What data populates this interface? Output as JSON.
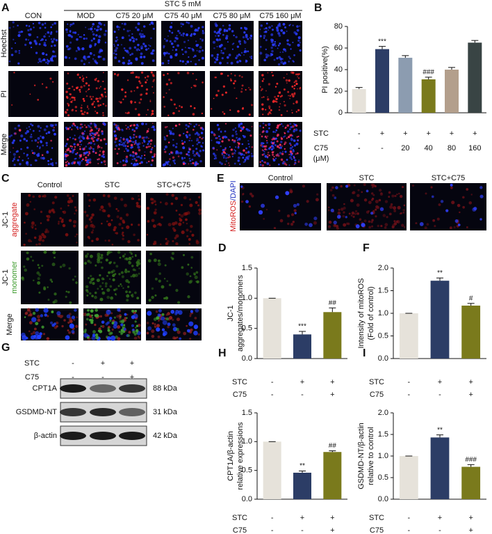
{
  "panels": {
    "A": {
      "letter": "A",
      "group_label": "STC 5 mM",
      "columns": [
        "CON",
        "MOD",
        "C75 20 μM",
        "C75 40 μM",
        "C75 80 μM",
        "C75 160 μM"
      ],
      "rows": [
        "Hoechst",
        "PI",
        "Merge"
      ]
    },
    "C": {
      "letter": "C",
      "columns": [
        "Control",
        "STC",
        "STC+C75"
      ],
      "rows": [
        [
          "JC-1",
          "aggregate"
        ],
        [
          "JC-1",
          "monomer"
        ],
        [
          "Merge"
        ]
      ]
    },
    "E": {
      "letter": "E",
      "columns": [
        "Control",
        "STC",
        "STC+C75"
      ],
      "row_label": [
        "MitoROS",
        "/DAPI"
      ]
    },
    "G": {
      "letter": "G",
      "conditions": [
        {
          "name": "STC",
          "values": [
            "-",
            "+",
            "+"
          ]
        },
        {
          "name": "C75",
          "values": [
            "-",
            "-",
            "+"
          ]
        }
      ],
      "bands": [
        {
          "name": "CPT1A",
          "size": "88 kDa"
        },
        {
          "name": "GSDMD-NT",
          "size": "31 kDa"
        },
        {
          "name": "β-actin",
          "size": "42 kDa"
        }
      ]
    }
  },
  "chart_data": [
    {
      "type": "bar",
      "label": "B",
      "ylabel": [
        "PI positive(%)"
      ],
      "values": [
        22,
        59,
        51,
        31,
        40,
        65
      ],
      "errors": [
        1.5,
        2.5,
        2,
        2,
        2,
        2
      ],
      "colors": [
        "#e6e2da",
        "#2c3d66",
        "#8c9cb0",
        "#7a7a1c",
        "#b39f8c",
        "#394444"
      ],
      "annotations": [
        null,
        "***",
        null,
        "###",
        null,
        null
      ],
      "ylim": [
        0,
        80
      ],
      "yticks": [
        0,
        20,
        40,
        60,
        80
      ],
      "conditions": [
        {
          "name": [
            "STC"
          ],
          "values": [
            "-",
            "+",
            "+",
            "+",
            "+",
            "+"
          ]
        },
        {
          "name": [
            "C75",
            "(μM)"
          ],
          "values": [
            "-",
            "-",
            "20",
            "40",
            "80",
            "160"
          ]
        }
      ]
    },
    {
      "type": "bar",
      "label": "D",
      "ylabel": [
        "JC-1",
        "aggregates/monomers"
      ],
      "values": [
        1.0,
        0.4,
        0.77
      ],
      "errors": [
        0,
        0.05,
        0.07
      ],
      "colors": [
        "#e6e2da",
        "#2c3d66",
        "#7a7a1c"
      ],
      "annotations": [
        null,
        "***",
        "##"
      ],
      "ylim": [
        0,
        1.5
      ],
      "yticks": [
        {
          "value": 0,
          "label": "0.0"
        },
        {
          "value": 0.5,
          "label": "0.5"
        },
        {
          "value": 1,
          "label": "1.0"
        },
        {
          "value": 1.5,
          "label": "1.5"
        }
      ],
      "conditions": [
        {
          "name": [
            "STC"
          ],
          "values": [
            "-",
            "+",
            "+"
          ]
        },
        {
          "name": [
            "C75"
          ],
          "values": [
            "-",
            "-",
            "+"
          ]
        }
      ]
    },
    {
      "type": "bar",
      "label": "F",
      "ylabel": [
        "Intensity of mitoROS",
        "(Fold of control)"
      ],
      "values": [
        1.0,
        1.72,
        1.17
      ],
      "errors": [
        0,
        0.06,
        0.05
      ],
      "colors": [
        "#e6e2da",
        "#2c3d66",
        "#7a7a1c"
      ],
      "annotations": [
        null,
        "**",
        "#"
      ],
      "ylim": [
        0,
        2
      ],
      "yticks": [
        {
          "value": 0,
          "label": "0.0"
        },
        {
          "value": 0.5,
          "label": "0.5"
        },
        {
          "value": 1,
          "label": "1.0"
        },
        {
          "value": 1.5,
          "label": "1.5"
        },
        {
          "value": 2,
          "label": "2.0"
        }
      ],
      "conditions": [
        {
          "name": [
            "STC"
          ],
          "values": [
            "-",
            "+",
            "+"
          ]
        },
        {
          "name": [
            "C75"
          ],
          "values": [
            "-",
            "-",
            "+"
          ]
        }
      ]
    },
    {
      "type": "bar",
      "label": "H",
      "ylabel": [
        "CPT1A/β-actin",
        "relative expressions"
      ],
      "values": [
        1.0,
        0.46,
        0.82
      ],
      "errors": [
        0,
        0.03,
        0.02
      ],
      "colors": [
        "#e6e2da",
        "#2c3d66",
        "#7a7a1c"
      ],
      "annotations": [
        null,
        "**",
        "##"
      ],
      "ylim": [
        0,
        1.5
      ],
      "yticks": [
        {
          "value": 0,
          "label": "0.0"
        },
        {
          "value": 0.5,
          "label": "0.5"
        },
        {
          "value": 1,
          "label": "1.0"
        },
        {
          "value": 1.5,
          "label": "1.5"
        }
      ],
      "conditions": [
        {
          "name": [
            "STC"
          ],
          "values": [
            "-",
            "+",
            "+"
          ]
        },
        {
          "name": [
            "C75"
          ],
          "values": [
            "-",
            "-",
            "+"
          ]
        }
      ]
    },
    {
      "type": "bar",
      "label": "I",
      "ylabel": [
        "GSDMD-NT/β-actin",
        "relative to control"
      ],
      "values": [
        1.0,
        1.43,
        0.75
      ],
      "errors": [
        0,
        0.06,
        0.05
      ],
      "colors": [
        "#e6e2da",
        "#2c3d66",
        "#7a7a1c"
      ],
      "annotations": [
        null,
        "**",
        "###"
      ],
      "ylim": [
        0,
        2
      ],
      "yticks": [
        {
          "value": 0,
          "label": "0.0"
        },
        {
          "value": 0.5,
          "label": "0.5"
        },
        {
          "value": 1,
          "label": "1.0"
        },
        {
          "value": 1.5,
          "label": "1.5"
        },
        {
          "value": 2,
          "label": "2.0"
        }
      ],
      "conditions": [
        {
          "name": [
            "STC"
          ],
          "values": [
            "-",
            "+",
            "+"
          ]
        },
        {
          "name": [
            "C75"
          ],
          "values": [
            "-",
            "-",
            "+"
          ]
        }
      ]
    }
  ]
}
